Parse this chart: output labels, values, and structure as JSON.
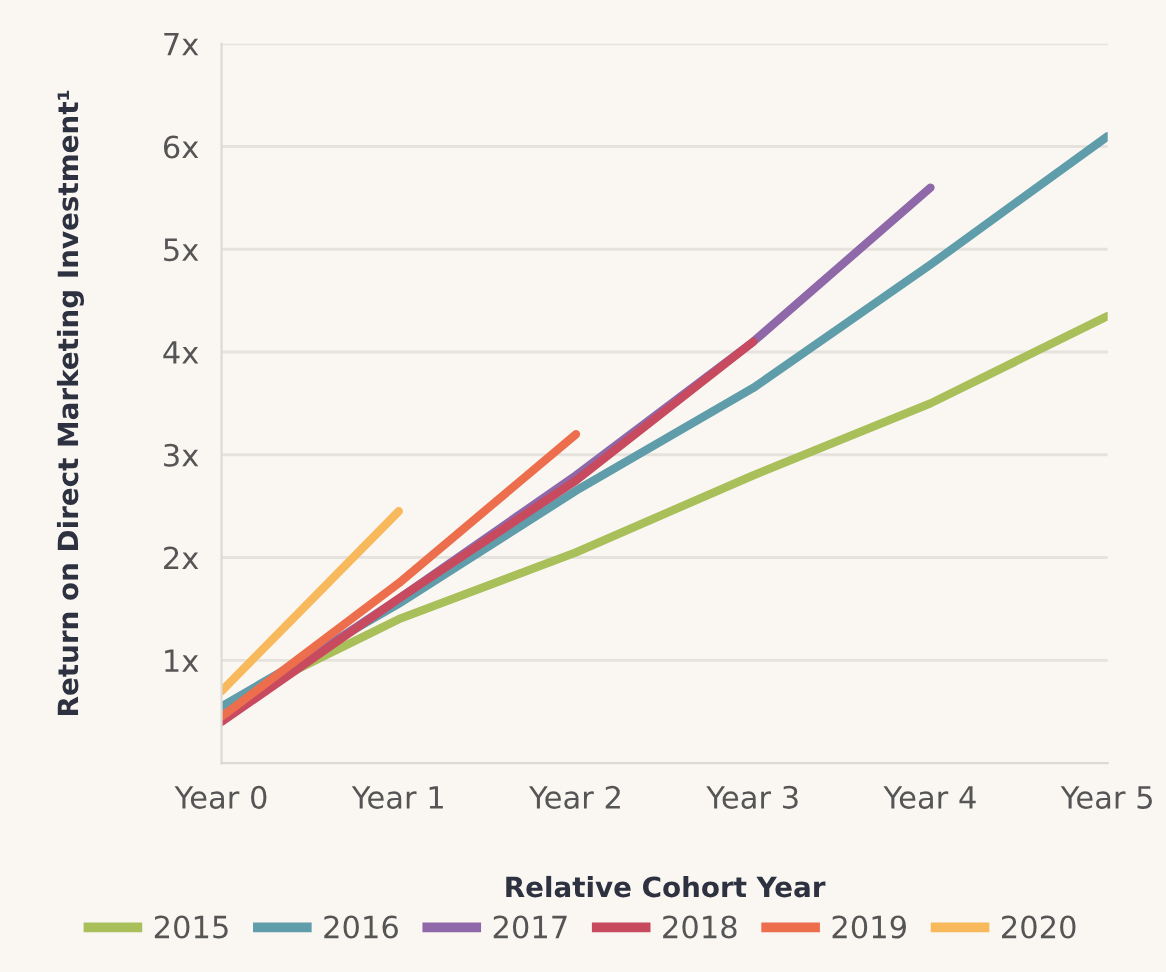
{
  "chart_data": {
    "type": "line",
    "xlabel": "Relative Cohort Year",
    "ylabel": "Return on Direct Marketing Investment¹",
    "categories": [
      "Year 0",
      "Year 1",
      "Year 2",
      "Year 3",
      "Year 4",
      "Year 5"
    ],
    "series": [
      {
        "name": "2015",
        "color": "#a9bf5a",
        "values": [
          0.55,
          1.4,
          2.05,
          2.8,
          3.5,
          4.35
        ]
      },
      {
        "name": "2016",
        "color": "#5f9daa",
        "values": [
          0.55,
          1.55,
          2.65,
          3.65,
          4.85,
          6.1
        ]
      },
      {
        "name": "2017",
        "color": "#8e68a8",
        "values": [
          0.45,
          1.6,
          2.8,
          4.1,
          5.6,
          null
        ]
      },
      {
        "name": "2018",
        "color": "#c84a5e",
        "values": [
          0.4,
          1.6,
          2.75,
          4.1,
          null,
          null
        ]
      },
      {
        "name": "2019",
        "color": "#ec6e4c",
        "values": [
          0.45,
          1.75,
          3.2,
          null,
          null,
          null
        ]
      },
      {
        "name": "2020",
        "color": "#f8b95c",
        "values": [
          0.7,
          2.45,
          null,
          null,
          null,
          null
        ]
      }
    ],
    "ylim": [
      0,
      7
    ],
    "yticks": [
      {
        "value": 1,
        "label": "1x"
      },
      {
        "value": 2,
        "label": "2x"
      },
      {
        "value": 3,
        "label": "3x"
      },
      {
        "value": 4,
        "label": "4x"
      },
      {
        "value": 5,
        "label": "5x"
      },
      {
        "value": 6,
        "label": "6x"
      },
      {
        "value": 7,
        "label": "7x"
      }
    ],
    "grid": "y",
    "legend": "bottom",
    "line_style": "solid",
    "marker": "none"
  }
}
